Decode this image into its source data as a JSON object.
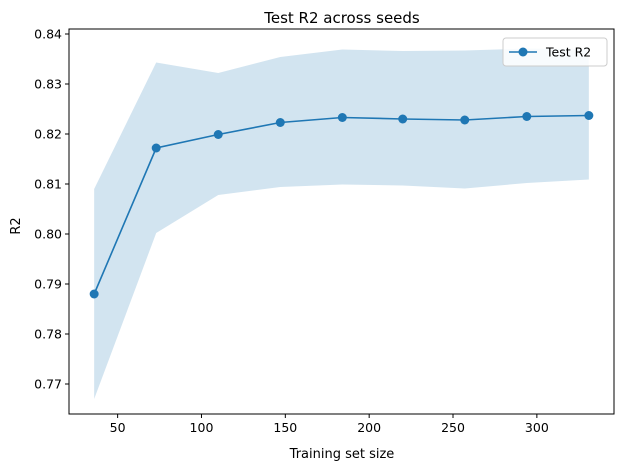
{
  "chart_data": {
    "type": "line",
    "title": "Test R2 across seeds",
    "xlabel": "Training set size",
    "ylabel": "R2",
    "xlim": [
      21,
      346
    ],
    "ylim": [
      0.764,
      0.841
    ],
    "xticks": [
      50,
      100,
      150,
      200,
      250,
      300
    ],
    "yticks": [
      0.77,
      0.78,
      0.79,
      0.8,
      0.81,
      0.82,
      0.83,
      0.84
    ],
    "ytick_labels": [
      "0.77",
      "0.78",
      "0.79",
      "0.80",
      "0.81",
      "0.82",
      "0.83",
      "0.84"
    ],
    "grid": false,
    "legend_position": "top-right",
    "series": [
      {
        "name": "Test R2",
        "color": "#1f77b4",
        "marker": "circle",
        "x": [
          36,
          73,
          110,
          147,
          184,
          220,
          257,
          294,
          331
        ],
        "y": [
          0.788,
          0.8172,
          0.8199,
          0.8223,
          0.8233,
          0.823,
          0.8228,
          0.8235,
          0.8237
        ],
        "band": {
          "color": "#1f77b4",
          "opacity": 0.2,
          "lower": [
            0.767,
            0.8002,
            0.8078,
            0.8094,
            0.8099,
            0.8097,
            0.8091,
            0.8102,
            0.8109
          ],
          "upper": [
            0.809,
            0.8343,
            0.8322,
            0.8354,
            0.8369,
            0.8366,
            0.8367,
            0.8371,
            0.8369
          ]
        }
      }
    ]
  }
}
